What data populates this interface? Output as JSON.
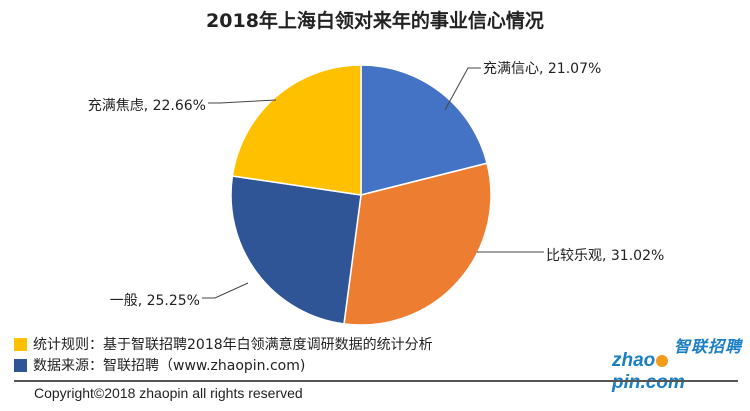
{
  "chart_data": {
    "type": "pie",
    "title": "2018年上海白领对来年的事业信心情况",
    "slices": [
      {
        "label": "充满信心",
        "value": 21.07,
        "value_label": "21.07%",
        "color": "#4472c4"
      },
      {
        "label": "比较乐观",
        "value": 31.02,
        "value_label": "31.02%",
        "color": "#ed7d31"
      },
      {
        "label": "一般",
        "value": 25.25,
        "value_label": "25.25%",
        "color": "#2f5597"
      },
      {
        "label": "充满焦虑",
        "value": 22.66,
        "value_label": "22.66%",
        "color": "#ffc000"
      }
    ],
    "start_angle_deg": 0,
    "direction": "clockwise",
    "legend": "none"
  },
  "notes": [
    {
      "text": "统计规则：基于智联招聘2018年白领满意度调研数据的统计分析",
      "color": "#ffc000"
    },
    {
      "text": "数据来源：智联招聘（www.zhaopin.com)",
      "color": "#2f5597"
    }
  ],
  "logo": {
    "cn": "智联招聘",
    "en_before": "zhao",
    "en_after": "pin.com"
  },
  "copyright": "Copyright©2018 zhaopin all rights reserved"
}
